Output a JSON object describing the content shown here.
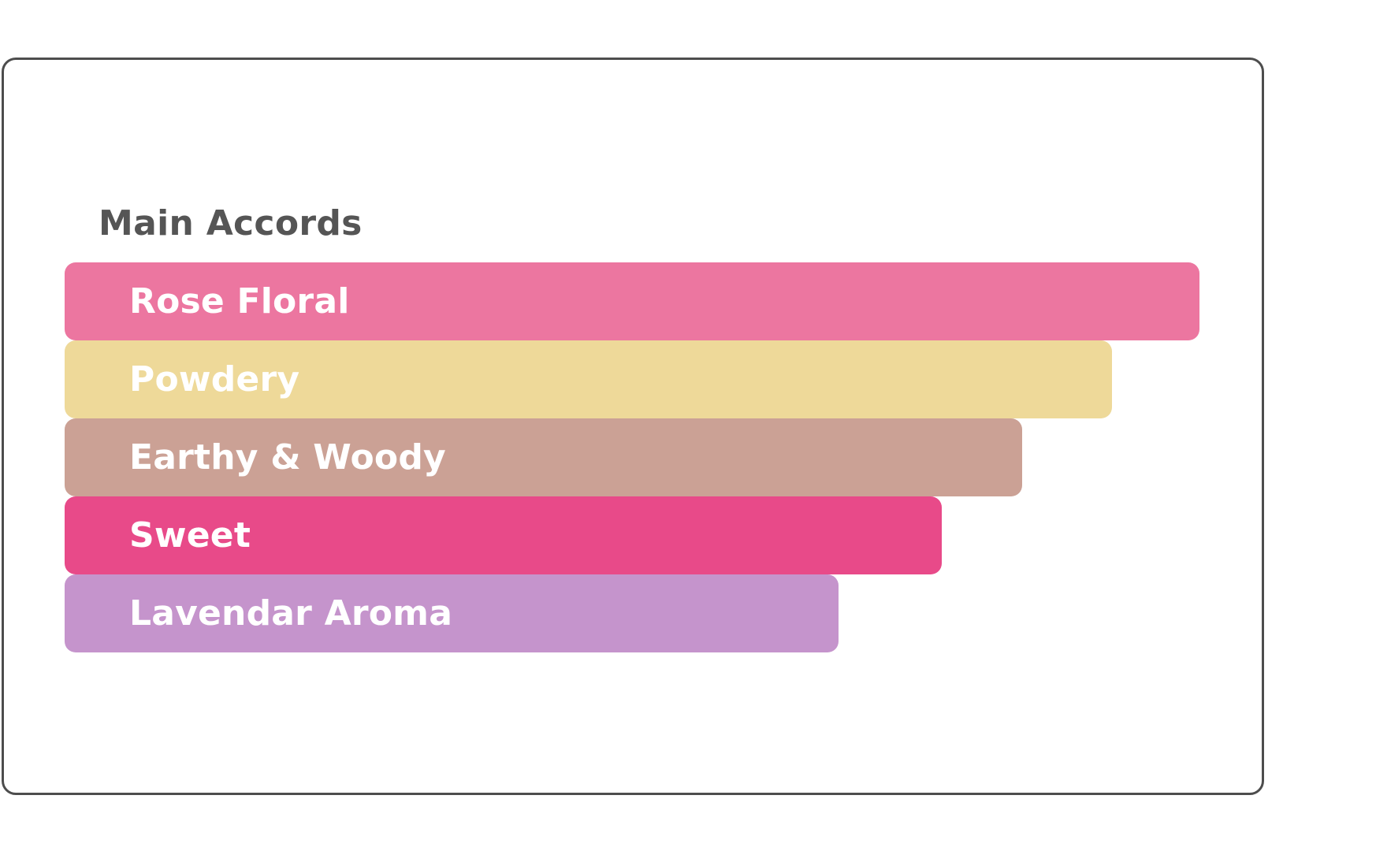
{
  "panel": {
    "title": "Main Accords"
  },
  "accords": [
    {
      "label": "Rose Floral",
      "strength": 1.0,
      "color": "#ec76a0"
    },
    {
      "label": "Powdery",
      "strength": 0.923,
      "color": "#eed999"
    },
    {
      "label": "Earthy & Woody",
      "strength": 0.844,
      "color": "#cba195"
    },
    {
      "label": "Sweet",
      "strength": 0.773,
      "color": "#e84a89"
    },
    {
      "label": "Lavendar Aroma",
      "strength": 0.682,
      "color": "#c594cc"
    }
  ]
}
